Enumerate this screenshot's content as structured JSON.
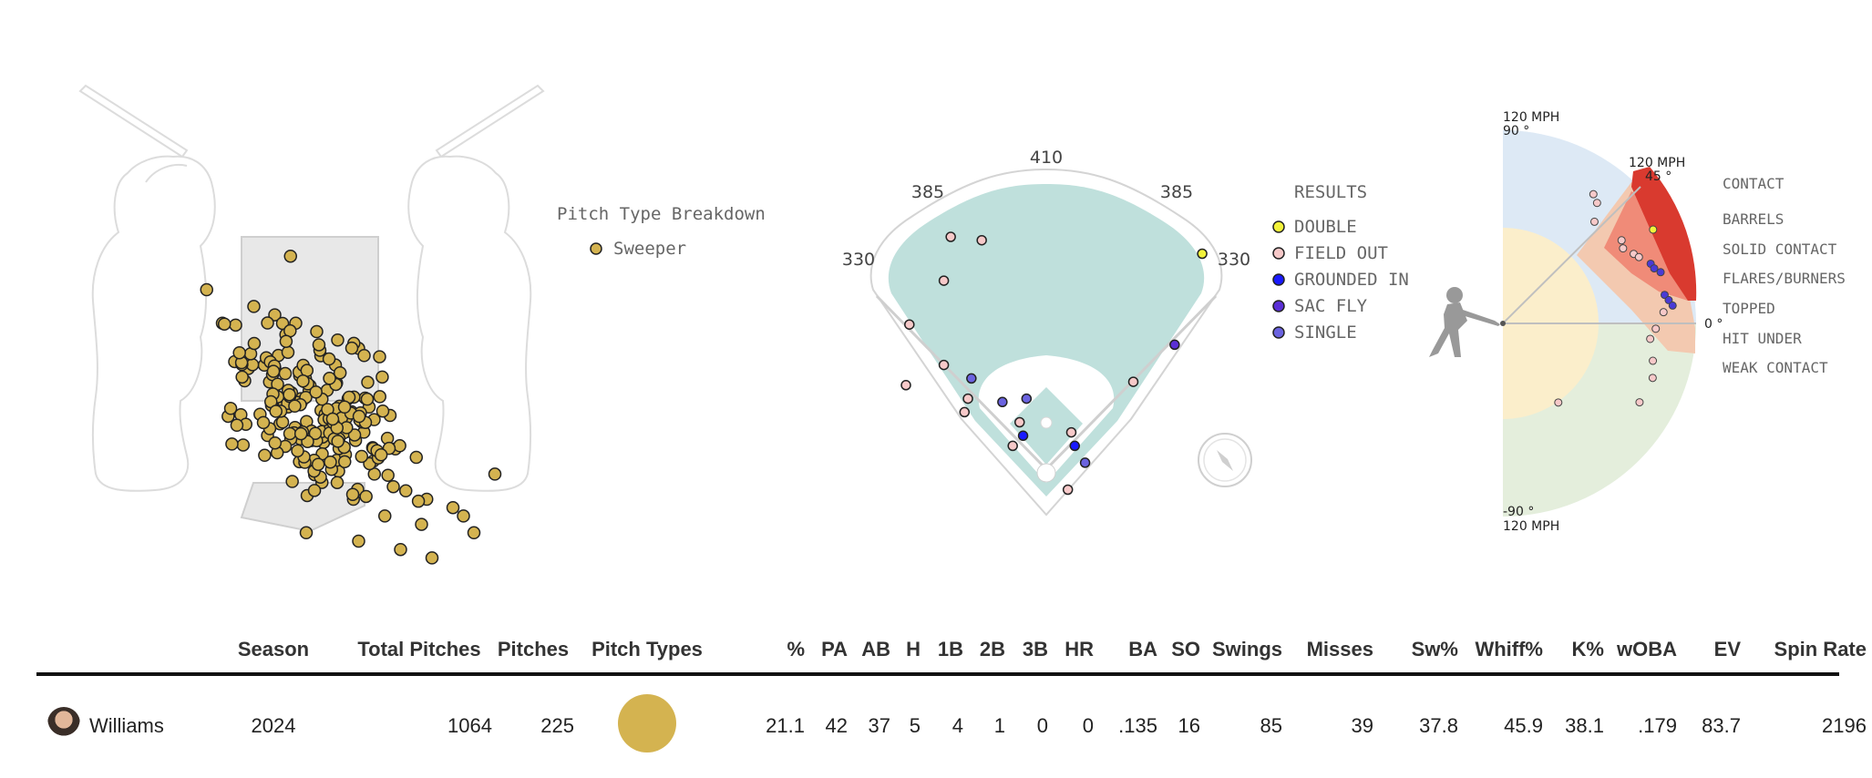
{
  "legend": {
    "title": "Pitch Type Breakdown",
    "items": [
      {
        "label": "Sweeper",
        "color": "#d4b350"
      }
    ]
  },
  "field": {
    "distances": [
      "410",
      "385",
      "385",
      "330",
      "330"
    ],
    "results_title": "RESULTS",
    "results": [
      {
        "label": "DOUBLE",
        "color": "#f2f23a"
      },
      {
        "label": "FIELD OUT",
        "color": "#f7c9c9"
      },
      {
        "label": "GROUNDED IN",
        "color": "#1a1aff"
      },
      {
        "label": "SAC FLY",
        "color": "#5b2fd6"
      },
      {
        "label": "SINGLE",
        "color": "#6b63e0"
      }
    ]
  },
  "contact": {
    "labels": [
      "CONTACT",
      "BARRELS",
      "SOLID CONTACT",
      "FLARES/BURNERS",
      "TOPPED",
      "HIT UNDER",
      "WEAK CONTACT"
    ],
    "axis": {
      "top_speed": "120 MPH",
      "top_angle": "90 °",
      "mid_speed": "120 MPH",
      "mid_angle": "45 °",
      "zero_angle": "0 °",
      "bottom_angle": "-90 °",
      "bottom_speed": "120 MPH"
    },
    "zone_colors": {
      "barrels": "#d93a2f",
      "solid": "#f08b78",
      "flares": "#f3c9b0",
      "topped": "#dde9f5",
      "under": "#fbeecb",
      "weak": "#e4eedc"
    }
  },
  "table": {
    "headers": [
      "Season",
      "Total Pitches",
      "Pitches",
      "Pitch Types",
      "%",
      "PA",
      "AB",
      "H",
      "1B",
      "2B",
      "3B",
      "HR",
      "BA",
      "SO",
      "Swings",
      "Misses",
      "Sw%",
      "Whiff%",
      "K%",
      "wOBA",
      "EV",
      "Spin Rate"
    ],
    "row": {
      "player": "Williams",
      "season": "2024",
      "total_pitches": "1064",
      "pitches": "225",
      "pitch_type_color": "#d4b350",
      "pct": "21.1",
      "pa": "42",
      "ab": "37",
      "h": "5",
      "b1": "4",
      "b2": "1",
      "b3": "0",
      "hr": "0",
      "ba": ".135",
      "so": "16",
      "swings": "85",
      "misses": "39",
      "sw_pct": "37.8",
      "whiff_pct": "45.9",
      "k_pct": "38.1",
      "woba": ".179",
      "ev": "83.7",
      "spin": "2196"
    }
  },
  "chart_data": [
    {
      "type": "scatter",
      "title": "Pitch Type Breakdown",
      "xlabel": "",
      "ylabel": "",
      "series": [
        {
          "name": "Sweeper",
          "color": "#d4b350",
          "note_count": 225
        }
      ],
      "x": [
        0.25,
        -0.55,
        -0.1,
        0.1,
        0.3,
        0.5,
        0.7,
        0.9,
        1.1,
        0.0,
        0.2,
        0.4,
        0.6,
        0.8,
        1.0,
        1.2,
        -0.2,
        0.05,
        0.35,
        0.65,
        0.95,
        1.25,
        1.45,
        0.15,
        0.45,
        0.75,
        1.05,
        1.35,
        1.55,
        0.55,
        0.85,
        1.15,
        1.5,
        1.8,
        0.4,
        0.9,
        1.3,
        1.6,
        2.0,
        -0.4,
        1.9,
        2.2
      ],
      "y": [
        3.9,
        3.5,
        3.3,
        3.2,
        3.1,
        3.0,
        2.9,
        2.8,
        2.7,
        2.6,
        2.5,
        2.4,
        2.3,
        2.2,
        2.1,
        2.0,
        2.6,
        2.4,
        2.2,
        2.0,
        1.8,
        1.6,
        1.5,
        1.9,
        1.7,
        1.5,
        1.3,
        1.1,
        1.0,
        1.2,
        1.0,
        0.8,
        0.7,
        0.9,
        0.6,
        0.5,
        0.4,
        0.3,
        0.6,
        3.1,
        0.8,
        1.3
      ]
    },
    {
      "type": "scatter",
      "title": "RESULTS",
      "series": [
        {
          "name": "DOUBLE",
          "color": "#f2f23a",
          "points": [
            [
              0.95,
              0.25
            ]
          ]
        },
        {
          "name": "FIELD OUT",
          "color": "#f7c9c9",
          "points": [
            [
              0.22,
              0.2
            ],
            [
              0.31,
              0.21
            ],
            [
              0.2,
              0.33
            ],
            [
              0.1,
              0.46
            ],
            [
              0.2,
              0.58
            ],
            [
              0.09,
              0.64
            ],
            [
              0.75,
              0.63
            ],
            [
              0.27,
              0.68
            ],
            [
              0.26,
              0.72
            ],
            [
              0.42,
              0.75
            ],
            [
              0.57,
              0.78
            ],
            [
              0.4,
              0.82
            ],
            [
              0.56,
              0.95
            ]
          ]
        },
        {
          "name": "GROUNDED IN",
          "color": "#1a1aff",
          "points": [
            [
              0.43,
              0.79
            ],
            [
              0.58,
              0.82
            ]
          ]
        },
        {
          "name": "SAC FLY",
          "color": "#5b2fd6",
          "points": [
            [
              0.87,
              0.52
            ]
          ]
        },
        {
          "name": "SINGLE",
          "color": "#6b63e0",
          "points": [
            [
              0.28,
              0.62
            ],
            [
              0.37,
              0.69
            ],
            [
              0.44,
              0.68
            ],
            [
              0.61,
              0.87
            ]
          ]
        }
      ]
    },
    {
      "type": "scatter",
      "title": "CONTACT",
      "xlabel": "Exit velocity (MPH)",
      "ylabel": "Launch angle (°)",
      "series": [
        {
          "name": "points",
          "values": [
            [
              98,
              55
            ],
            [
              95,
              52
            ],
            [
              85,
              48
            ],
            [
              90,
              35
            ],
            [
              88,
              32
            ],
            [
              92,
              28
            ],
            [
              94,
              26
            ],
            [
              99,
              22
            ],
            [
              103,
              18
            ],
            [
              100,
              20
            ],
            [
              102,
              10
            ],
            [
              104,
              8
            ],
            [
              106,
              6
            ],
            [
              100,
              4
            ],
            [
              95,
              -2
            ],
            [
              92,
              -6
            ],
            [
              96,
              -14
            ],
            [
              99,
              -20
            ],
            [
              98,
              -30
            ],
            [
              60,
              -55
            ],
            [
              110,
              32
            ]
          ]
        }
      ]
    }
  ]
}
